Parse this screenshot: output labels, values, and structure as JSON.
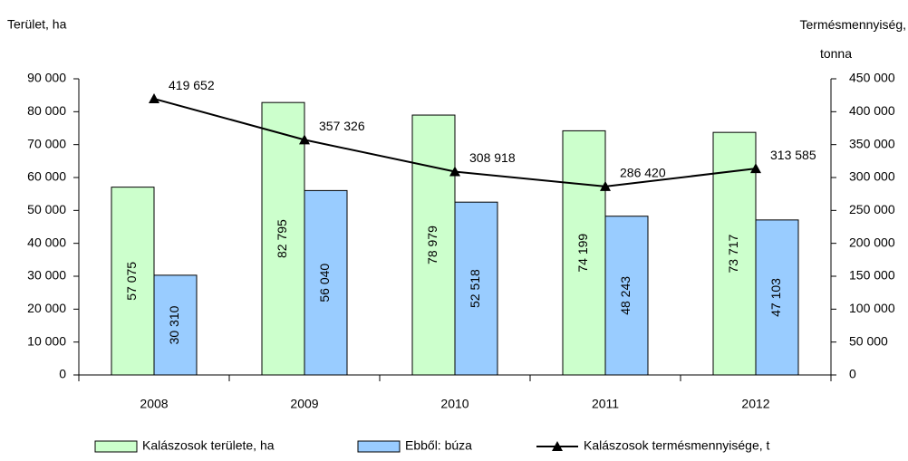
{
  "chart_data": {
    "type": "bar",
    "ylabel": "Terület, ha",
    "y2label": "Termésmennyiség, tonna",
    "categories": [
      "2008",
      "2009",
      "2010",
      "2011",
      "2012"
    ],
    "ylim": [
      0,
      90000
    ],
    "yticks": [
      {
        "value": 0,
        "label": "0"
      },
      {
        "value": 10000,
        "label": "10 000"
      },
      {
        "value": 20000,
        "label": "20 000"
      },
      {
        "value": 30000,
        "label": "30 000"
      },
      {
        "value": 40000,
        "label": "40 000"
      },
      {
        "value": 50000,
        "label": "50 000"
      },
      {
        "value": 60000,
        "label": "60 000"
      },
      {
        "value": 70000,
        "label": "70 000"
      },
      {
        "value": 80000,
        "label": "80 000"
      },
      {
        "value": 90000,
        "label": "90 000"
      }
    ],
    "y2lim": [
      0,
      450000
    ],
    "y2ticks": [
      {
        "value": 0,
        "label": "0"
      },
      {
        "value": 50000,
        "label": "50 000"
      },
      {
        "value": 100000,
        "label": "100 000"
      },
      {
        "value": 150000,
        "label": "150 000"
      },
      {
        "value": 200000,
        "label": "200 000"
      },
      {
        "value": 250000,
        "label": "250 000"
      },
      {
        "value": 300000,
        "label": "300 000"
      },
      {
        "value": 350000,
        "label": "350 000"
      },
      {
        "value": 400000,
        "label": "400 000"
      },
      {
        "value": 450000,
        "label": "450 000"
      }
    ],
    "grid": false,
    "legend": "bottom",
    "series": [
      {
        "name": "Kalászosok területe, ha",
        "type": "bar",
        "color": "#ccffcc",
        "values": [
          57075,
          82795,
          78979,
          74199,
          73717
        ],
        "value_labels": [
          "57 075",
          "82 795",
          "78 979",
          "74 199",
          "73 717"
        ]
      },
      {
        "name": "Ebből: búza",
        "type": "bar",
        "color": "#99ccff",
        "values": [
          30310,
          56040,
          52518,
          48243,
          47103
        ],
        "value_labels": [
          "30 310",
          "56 040",
          "52 518",
          "48 243",
          "47 103"
        ]
      },
      {
        "name": "Kalászosok termésmennyisége, t",
        "type": "line",
        "axis": "y2",
        "color": "#000000",
        "values": [
          419652,
          357326,
          308918,
          286420,
          313585
        ],
        "value_labels": [
          "419 652",
          "357 326",
          "308 918",
          "286 420",
          "313 585"
        ]
      }
    ]
  }
}
